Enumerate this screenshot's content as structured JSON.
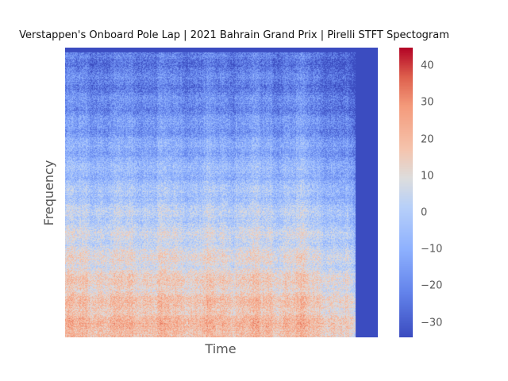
{
  "chart_data": {
    "type": "heatmap",
    "title": "Verstappen's Onboard Pole Lap | 2021 Bahrain Grand Prix | Pirelli STFT Spectogram",
    "xlabel": "Time",
    "ylabel": "Frequency",
    "colormap": "coolwarm",
    "colorbar": {
      "range": [
        -34,
        45
      ],
      "ticks": [
        -30,
        -20,
        -10,
        0,
        10,
        20,
        30,
        40
      ],
      "tick_labels": [
        "−30",
        "−20",
        "−10",
        "0",
        "10",
        "20",
        "30",
        "40"
      ]
    },
    "grid": false,
    "data_extent_fraction_of_time": 0.93,
    "band_trend_low_to_high_freq": [
      22,
      18,
      12,
      6,
      0,
      -6,
      -12,
      -18,
      -22,
      -24
    ]
  },
  "colors": {
    "low": "#3b4cc0",
    "mid": "#dddddd",
    "high": "#b40426"
  }
}
